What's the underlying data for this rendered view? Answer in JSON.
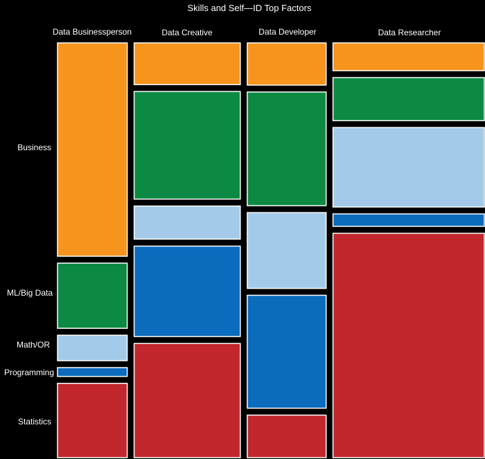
{
  "chart_data": {
    "type": "mosaic",
    "title": "Skills and Self—ID Top Factors",
    "columns": [
      "Data Businessperson",
      "Data Creative",
      "Data Developer",
      "Data Researcher"
    ],
    "column_shares": [
      0.153,
      0.233,
      0.173,
      0.332
    ],
    "rows": [
      "Business",
      "ML/Big Data",
      "Math/OR",
      "Programming",
      "Statistics"
    ],
    "row_colors": [
      "#f7941d",
      "#0c8a43",
      "#a3cbe9",
      "#0b6bbd",
      "#c1272d"
    ],
    "shares": [
      [
        0.511,
        0.156,
        0.061,
        0.021,
        0.178
      ],
      [
        0.107,
        0.276,
        0.085,
        0.232,
        0.293
      ],
      [
        0.109,
        0.294,
        0.196,
        0.292,
        0.11
      ],
      [
        0.067,
        0.104,
        0.192,
        0.03,
        0.542
      ]
    ]
  }
}
